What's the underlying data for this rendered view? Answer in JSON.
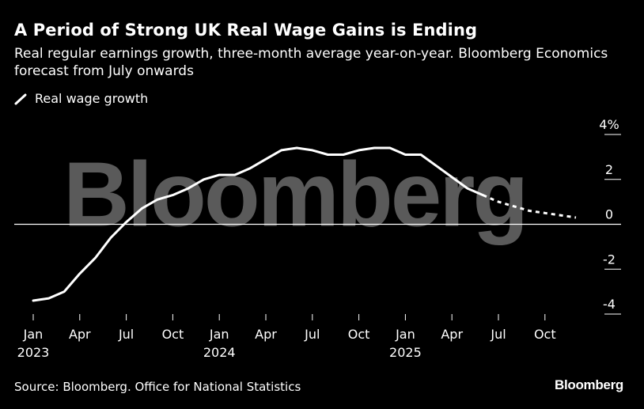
{
  "title": "A Period of Strong UK Real Wage Gains is Ending",
  "subtitle": "Real regular earnings growth, three-month average year-on-year. Bloomberg Economics forecast from July onwards",
  "legend": {
    "label": "Real wage growth"
  },
  "source": "Source: Bloomberg. Office for National Statistics",
  "brand": "Bloomberg",
  "watermark": "Bloomberg",
  "colors": {
    "background": "#000000",
    "line": "#ffffff",
    "watermark": "#5a5a5a"
  },
  "chart_data": {
    "type": "line",
    "title": "A Period of Strong UK Real Wage Gains is Ending",
    "ylim": [
      -4,
      4
    ],
    "ytick_values": [
      4,
      2,
      0,
      -2,
      -4
    ],
    "ytick_labels": [
      "4%",
      "2",
      "0",
      "-2",
      "-4"
    ],
    "xlim": [
      "2023-01",
      "2025-12"
    ],
    "xtick_values": [
      "2023-01",
      "2023-04",
      "2023-07",
      "2023-10",
      "2024-01",
      "2024-04",
      "2024-07",
      "2024-10",
      "2025-01",
      "2025-04",
      "2025-07",
      "2025-10"
    ],
    "xtick_labels": [
      "Jan",
      "Apr",
      "Jul",
      "Oct",
      "Jan",
      "Apr",
      "Jul",
      "Oct",
      "Jan",
      "Apr",
      "Jul",
      "Oct"
    ],
    "xtick_year_labels": [
      {
        "at": "2023-01",
        "label": "2023"
      },
      {
        "at": "2024-01",
        "label": "2024"
      },
      {
        "at": "2025-01",
        "label": "2025"
      }
    ],
    "legend_position": "top-left",
    "grid": false,
    "series": [
      {
        "name": "Real wage growth",
        "style": "solid",
        "x": [
          "2023-01",
          "2023-02",
          "2023-03",
          "2023-04",
          "2023-05",
          "2023-06",
          "2023-07",
          "2023-08",
          "2023-09",
          "2023-10",
          "2023-11",
          "2023-12",
          "2024-01",
          "2024-02",
          "2024-03",
          "2024-04",
          "2024-05",
          "2024-06",
          "2024-07",
          "2024-08",
          "2024-09",
          "2024-10",
          "2024-11",
          "2024-12",
          "2025-01",
          "2025-02",
          "2025-03",
          "2025-04",
          "2025-05",
          "2025-06"
        ],
        "y": [
          -3.4,
          -3.3,
          -3.0,
          -2.2,
          -1.5,
          -0.6,
          0.1,
          0.7,
          1.1,
          1.3,
          1.6,
          2.0,
          2.2,
          2.2,
          2.5,
          2.9,
          3.3,
          3.4,
          3.3,
          3.1,
          3.1,
          3.3,
          3.4,
          3.4,
          3.1,
          3.1,
          2.6,
          2.1,
          1.6,
          1.3
        ]
      },
      {
        "name": "Bloomberg Economics forecast",
        "style": "dashed",
        "x": [
          "2025-06",
          "2025-07",
          "2025-08",
          "2025-09",
          "2025-10",
          "2025-11",
          "2025-12"
        ],
        "y": [
          1.3,
          1.0,
          0.8,
          0.6,
          0.5,
          0.4,
          0.3
        ]
      }
    ]
  }
}
